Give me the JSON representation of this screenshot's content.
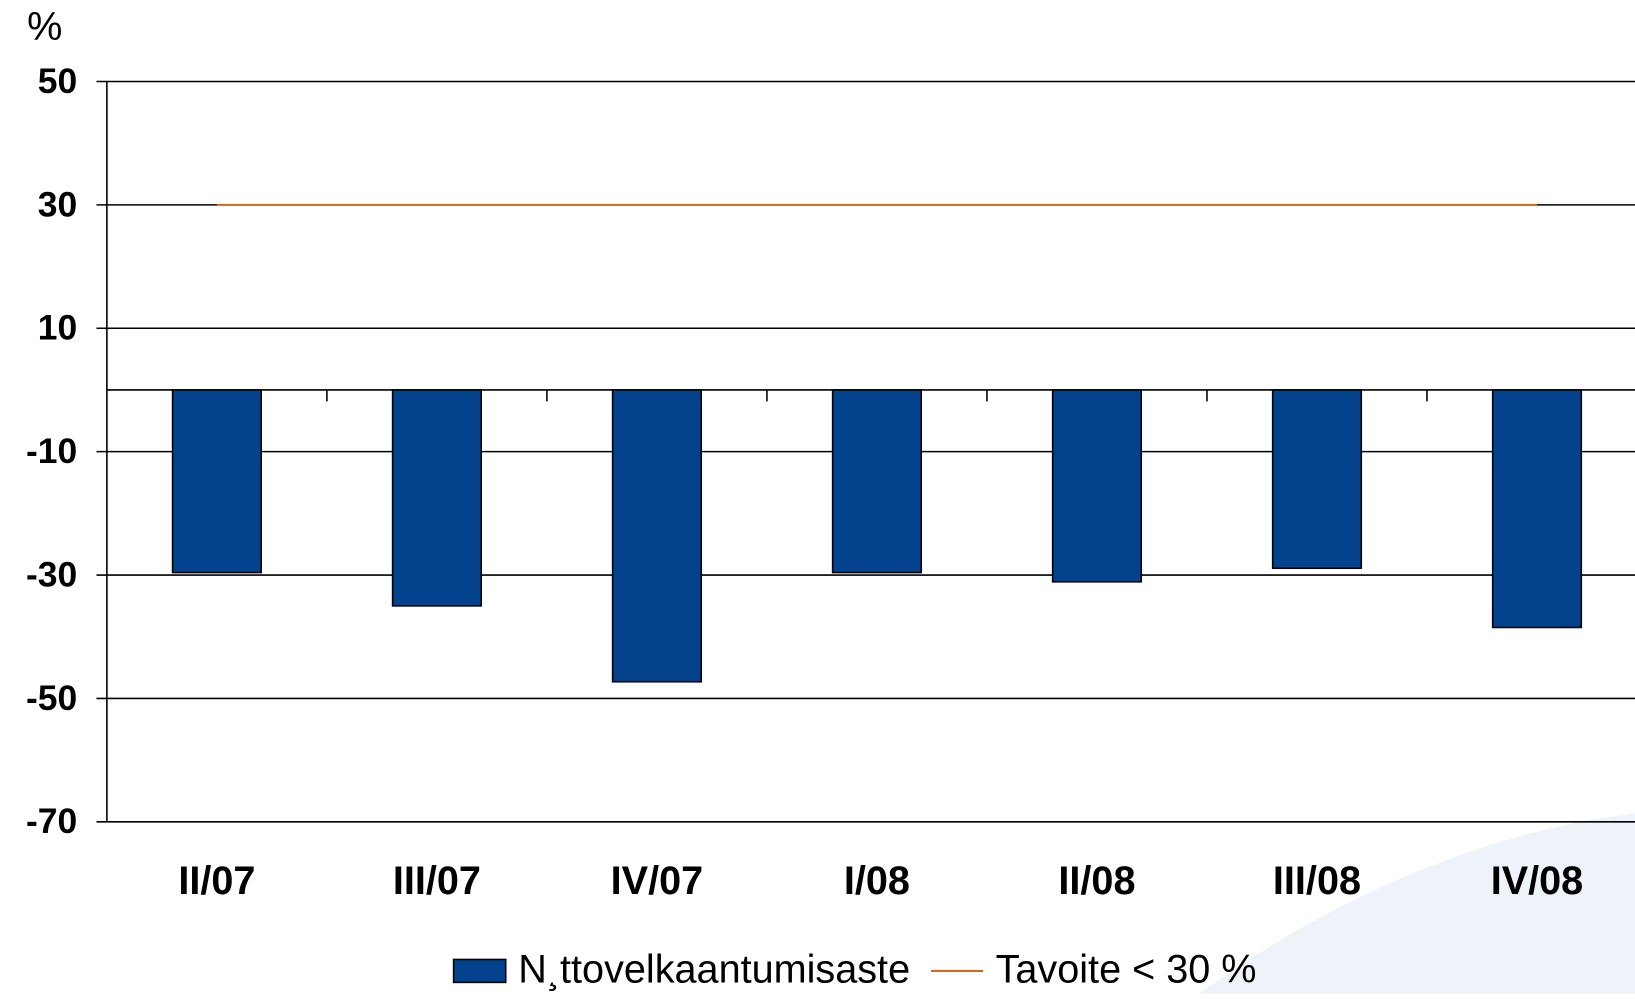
{
  "chart_data": {
    "type": "bar",
    "y_label": "%",
    "categories": [
      "II/07",
      "III/07",
      "IV/07",
      "I/08",
      "II/08",
      "III/08",
      "IV/08"
    ],
    "series": [
      {
        "name": "N¸ttovelkaantumisaste",
        "color": "#03428c",
        "type": "bar",
        "values": [
          -29.6,
          -35,
          -47.3,
          -29.6,
          -31.1,
          -28.9,
          -38.5
        ]
      },
      {
        "name": "Tavoite < 30 %",
        "color": "#d2691e",
        "type": "line",
        "values": [
          30,
          30,
          30,
          30,
          30,
          30,
          30
        ]
      }
    ],
    "ylim": [
      -70,
      50
    ],
    "yticks": [
      50,
      30,
      10,
      -10,
      -30,
      -50,
      -70
    ],
    "grid": true,
    "legend": "bottom"
  }
}
